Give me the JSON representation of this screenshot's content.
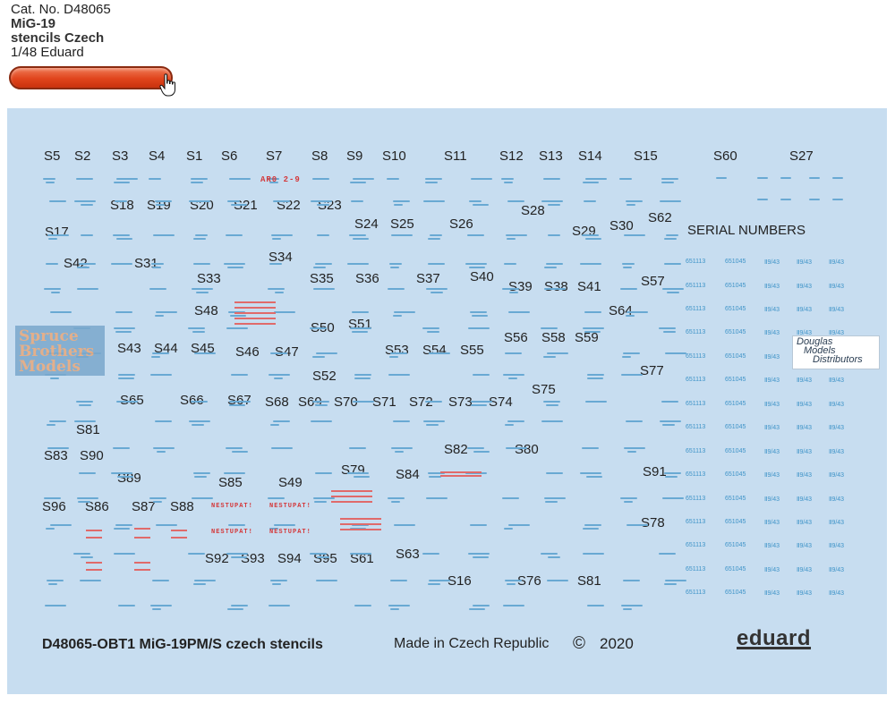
{
  "header": {
    "cat_no": "Cat. No. D48065",
    "model": "MiG-19",
    "subtitle": "stencils Czech",
    "scale": "1/48  Eduard"
  },
  "sheet": {
    "labels": [
      "S5",
      "S2",
      "S3",
      "S4",
      "S1",
      "S6",
      "S7",
      "S8",
      "S9",
      "S10",
      "S11",
      "S12",
      "S13",
      "S14",
      "S15",
      "S60",
      "S27",
      "S18",
      "S19",
      "S20",
      "S21",
      "S22",
      "S23",
      "S28",
      "S62",
      "S17",
      "S24",
      "S25",
      "S26",
      "S29",
      "S30",
      "S42",
      "S31",
      "S34",
      "S33",
      "S35",
      "S36",
      "S37",
      "S40",
      "S39",
      "S38",
      "S41",
      "S57",
      "S48",
      "S64",
      "S50",
      "S51",
      "S56",
      "S58",
      "S59",
      "S43",
      "S44",
      "S45",
      "S46",
      "S47",
      "S53",
      "S54",
      "S55",
      "S52",
      "S77",
      "S75",
      "S65",
      "S66",
      "S67",
      "S68",
      "S69",
      "S70",
      "S71",
      "S72",
      "S73",
      "S74",
      "S81",
      "S82",
      "S80",
      "S83",
      "S90",
      "S89",
      "S85",
      "S49",
      "S79",
      "S84",
      "S91",
      "S96",
      "S86",
      "S87",
      "S88",
      "S78",
      "S92",
      "S93",
      "S94",
      "S95",
      "S61",
      "S63",
      "S16",
      "S76",
      "S81"
    ],
    "red_text": [
      "AR0 2-9",
      "NESTUPAT!"
    ],
    "serial_title": "SERIAL NUMBERS",
    "serial_codes": [
      "651113",
      "651045",
      "Ⅱ9/43"
    ]
  },
  "watermarks": {
    "spruce": [
      "Spruce",
      "Brothers",
      "Models"
    ],
    "douglas": [
      "Douglas",
      "Models",
      "Distributors"
    ]
  },
  "footer": {
    "code": "D48065-OBT1 MiG-19PM/S czech stencils",
    "made_in": "Made in Czech Republic",
    "copyright_symbol": "©",
    "year": "2020",
    "brand": "eduard"
  },
  "colors": {
    "sheet_bg": "#c7ddf0",
    "stencil_blue": "#69a9d3",
    "stencil_red": "#d4383a",
    "button_orange": "#e0441c"
  },
  "icons": [
    "hand-pointer-icon"
  ]
}
